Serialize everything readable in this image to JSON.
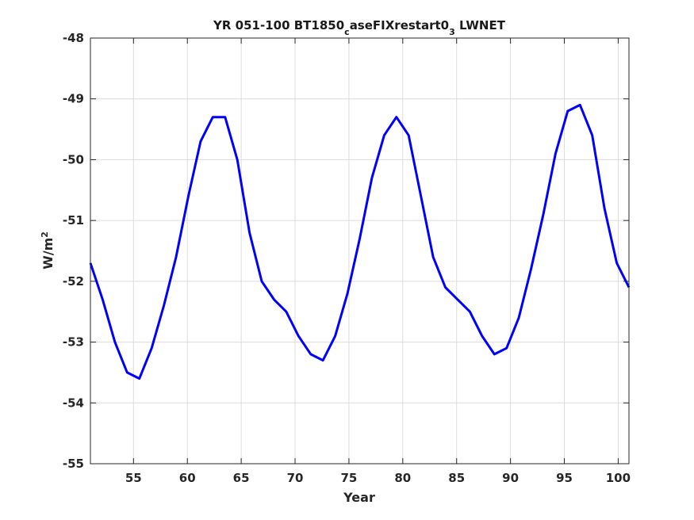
{
  "chart_data": {
    "type": "line",
    "title_parts": {
      "main": "YR 051-100 BT1850",
      "sub1": "c",
      "mid": "aseFIXrestart0",
      "sub2": "3",
      "tail": " LWNET"
    },
    "xlabel": "Year",
    "ylabel_base": "W/m",
    "ylabel_sup": "2",
    "xlim": [
      51,
      101
    ],
    "ylim": [
      -55,
      -48
    ],
    "xticks": [
      55,
      60,
      65,
      70,
      75,
      80,
      85,
      90,
      95,
      100
    ],
    "yticks": [
      -48,
      -49,
      -50,
      -51,
      -52,
      -53,
      -54,
      -55
    ],
    "grid": true,
    "series_color": "#0000ff",
    "series": [
      {
        "values": [
          -51.7,
          -52.3,
          -53.0,
          -53.5,
          -53.6,
          -53.1,
          -52.4,
          -51.6,
          -50.6,
          -49.7,
          -49.3,
          -49.3,
          -50.0,
          -51.2,
          -52.0,
          -52.3,
          -52.5,
          -52.9,
          -53.2,
          -53.3,
          -52.9,
          -52.2,
          -51.3,
          -50.3,
          -49.6,
          -49.3,
          -49.6,
          -50.6,
          -51.6,
          -52.1,
          -52.3,
          -52.5,
          -52.9,
          -53.2,
          -53.1,
          -52.6,
          -51.8,
          -50.9,
          -49.9,
          -49.2,
          -49.1,
          -49.6,
          -50.8,
          -51.7,
          -52.1
        ]
      }
    ]
  }
}
